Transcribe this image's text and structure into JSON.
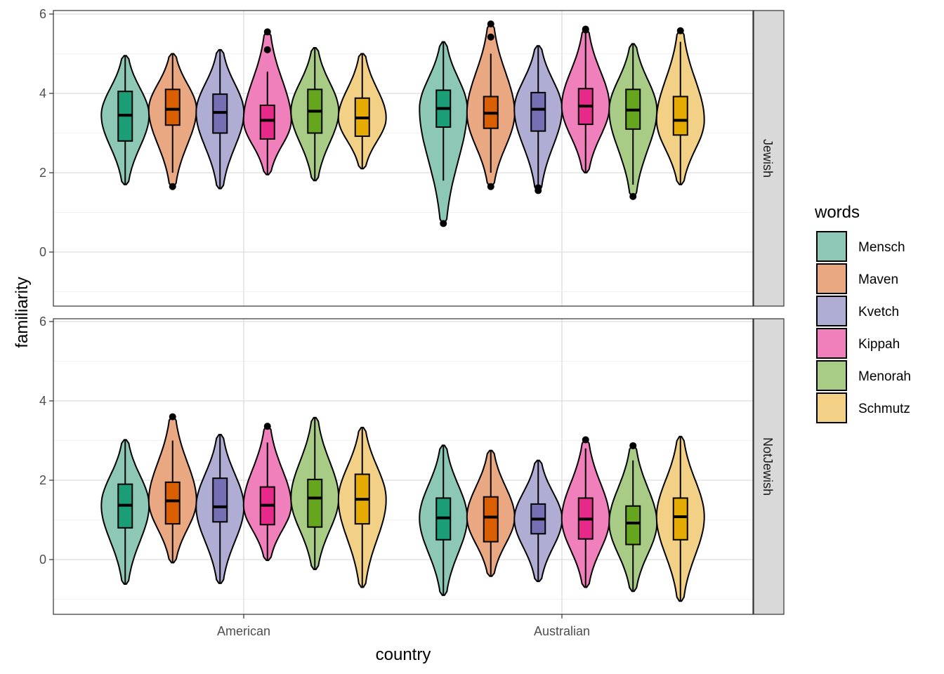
{
  "chart_data": {
    "type": "violin",
    "title": "",
    "xlabel": "country",
    "ylabel": "familiarity",
    "ylim": [
      -1.35,
      6.05
    ],
    "yticks": [
      0,
      2,
      4,
      6
    ],
    "grid": true,
    "legend_position": "right",
    "legend_title": "words",
    "categories": [
      "American",
      "Australian"
    ],
    "facets": [
      "Jewish",
      "NotJewish"
    ],
    "series": [
      {
        "name": "Mensch",
        "fill": "#1B9E77",
        "light_fill": "#8DC8B6"
      },
      {
        "name": "Maven",
        "fill": "#D95F02",
        "light_fill": "#E9A882"
      },
      {
        "name": "Kvetch",
        "fill": "#7570B3",
        "light_fill": "#B0ADD4"
      },
      {
        "name": "Kippah",
        "fill": "#E7298A",
        "light_fill": "#F080BB"
      },
      {
        "name": "Menorah",
        "fill": "#66A61E",
        "light_fill": "#A8CC86"
      },
      {
        "name": "Schmutz",
        "fill": "#E6AB02",
        "light_fill": "#F2D187"
      }
    ],
    "data": {
      "Jewish": {
        "American": [
          {
            "violin_min": 1.7,
            "violin_max": 4.95,
            "q1": 2.8,
            "median": 3.45,
            "q3": 4.05,
            "whisker_low": 1.7,
            "whisker_high": 4.95,
            "outliers": [],
            "mode": 0.38
          },
          {
            "violin_min": 1.65,
            "violin_max": 5.0,
            "q1": 3.2,
            "median": 3.6,
            "q3": 4.1,
            "whisker_low": 2.0,
            "whisker_high": 5.0,
            "outliers": [
              1.65
            ],
            "mode": 0.55
          },
          {
            "violin_min": 1.6,
            "violin_max": 5.1,
            "q1": 3.0,
            "median": 3.52,
            "q3": 3.98,
            "whisker_low": 1.6,
            "whisker_high": 5.1,
            "outliers": [],
            "mode": 0.5
          },
          {
            "violin_min": 1.95,
            "violin_max": 5.55,
            "q1": 2.85,
            "median": 3.32,
            "q3": 3.7,
            "whisker_low": 1.95,
            "whisker_high": 4.55,
            "outliers": [
              5.1,
              5.55
            ],
            "mode": 0.55
          },
          {
            "violin_min": 1.8,
            "violin_max": 5.15,
            "q1": 3.0,
            "median": 3.55,
            "q3": 4.1,
            "whisker_low": 1.8,
            "whisker_high": 5.15,
            "outliers": [],
            "mode": 0.5
          },
          {
            "violin_min": 2.1,
            "violin_max": 5.0,
            "q1": 2.92,
            "median": 3.38,
            "q3": 3.88,
            "whisker_low": 2.1,
            "whisker_high": 5.0,
            "outliers": [],
            "mode": 0.3
          }
        ],
        "Australian": [
          {
            "violin_min": 0.72,
            "violin_max": 5.3,
            "q1": 3.15,
            "median": 3.62,
            "q3": 4.08,
            "whisker_low": 1.8,
            "whisker_high": 5.3,
            "outliers": [
              0.72
            ],
            "mode": 0.62
          },
          {
            "violin_min": 1.65,
            "violin_max": 5.75,
            "q1": 3.12,
            "median": 3.5,
            "q3": 3.92,
            "whisker_low": 2.0,
            "whisker_high": 5.0,
            "outliers": [
              1.65,
              5.42,
              5.75
            ],
            "mode": 0.45
          },
          {
            "violin_min": 1.55,
            "violin_max": 5.2,
            "q1": 3.05,
            "median": 3.6,
            "q3": 4.02,
            "whisker_low": 1.65,
            "whisker_high": 5.2,
            "outliers": [
              1.55,
              1.62
            ],
            "mode": 0.55
          },
          {
            "violin_min": 2.0,
            "violin_max": 5.62,
            "q1": 3.22,
            "median": 3.68,
            "q3": 4.12,
            "whisker_low": 2.0,
            "whisker_high": 5.55,
            "outliers": [
              5.6,
              5.62
            ],
            "mode": 0.62
          },
          {
            "violin_min": 1.4,
            "violin_max": 5.25,
            "q1": 3.1,
            "median": 3.58,
            "q3": 4.1,
            "whisker_low": 1.7,
            "whisker_high": 5.25,
            "outliers": [
              1.4
            ],
            "mode": 0.45
          },
          {
            "violin_min": 1.7,
            "violin_max": 5.58,
            "q1": 2.95,
            "median": 3.32,
            "q3": 3.92,
            "whisker_low": 1.7,
            "whisker_high": 5.3,
            "outliers": [
              5.58
            ],
            "mode": 0.55
          }
        ]
      },
      "NotJewish": {
        "American": [
          {
            "violin_min": -0.62,
            "violin_max": 3.02,
            "q1": 0.8,
            "median": 1.37,
            "q3": 1.9,
            "whisker_low": -0.62,
            "whisker_high": 3.02,
            "outliers": [],
            "mode": 0.45
          },
          {
            "violin_min": -0.08,
            "violin_max": 3.6,
            "q1": 0.9,
            "median": 1.48,
            "q3": 1.95,
            "whisker_low": -0.08,
            "whisker_high": 3.0,
            "outliers": [
              3.6
            ],
            "mode": 0.52
          },
          {
            "violin_min": -0.6,
            "violin_max": 3.15,
            "q1": 0.95,
            "median": 1.33,
            "q3": 2.05,
            "whisker_low": -0.6,
            "whisker_high": 3.15,
            "outliers": [],
            "mode": 0.52
          },
          {
            "violin_min": -0.02,
            "violin_max": 3.36,
            "q1": 0.88,
            "median": 1.37,
            "q3": 1.83,
            "whisker_low": -0.02,
            "whisker_high": 2.95,
            "outliers": [
              3.36
            ],
            "mode": 0.52
          },
          {
            "violin_min": -0.25,
            "violin_max": 3.58,
            "q1": 0.82,
            "median": 1.55,
            "q3": 2.02,
            "whisker_low": -0.25,
            "whisker_high": 3.58,
            "outliers": [],
            "mode": 0.45
          },
          {
            "violin_min": -0.7,
            "violin_max": 3.33,
            "q1": 0.9,
            "median": 1.52,
            "q3": 2.15,
            "whisker_low": -0.7,
            "whisker_high": 3.33,
            "outliers": [],
            "mode": 0.45
          }
        ],
        "Australian": [
          {
            "violin_min": -0.9,
            "violin_max": 2.88,
            "q1": 0.5,
            "median": 1.05,
            "q3": 1.55,
            "whisker_low": -0.9,
            "whisker_high": 2.88,
            "outliers": [],
            "mode": 0.52
          },
          {
            "violin_min": -0.42,
            "violin_max": 2.75,
            "q1": 0.45,
            "median": 1.07,
            "q3": 1.58,
            "whisker_low": -0.42,
            "whisker_high": 2.75,
            "outliers": [],
            "mode": 0.6
          },
          {
            "violin_min": -0.55,
            "violin_max": 2.5,
            "q1": 0.65,
            "median": 1.02,
            "q3": 1.4,
            "whisker_low": -0.55,
            "whisker_high": 2.5,
            "outliers": [],
            "mode": 0.62
          },
          {
            "violin_min": -0.7,
            "violin_max": 3.02,
            "q1": 0.52,
            "median": 1.02,
            "q3": 1.55,
            "whisker_low": -0.7,
            "whisker_high": 2.8,
            "outliers": [
              3.02
            ],
            "mode": 0.55
          },
          {
            "violin_min": -0.8,
            "violin_max": 2.87,
            "q1": 0.38,
            "median": 0.92,
            "q3": 1.35,
            "whisker_low": -0.8,
            "whisker_high": 2.5,
            "outliers": [
              2.87
            ],
            "mode": 0.5
          },
          {
            "violin_min": -1.05,
            "violin_max": 3.1,
            "q1": 0.5,
            "median": 1.08,
            "q3": 1.55,
            "whisker_low": -1.05,
            "whisker_high": 3.1,
            "outliers": [],
            "mode": 0.5
          }
        ]
      }
    }
  }
}
